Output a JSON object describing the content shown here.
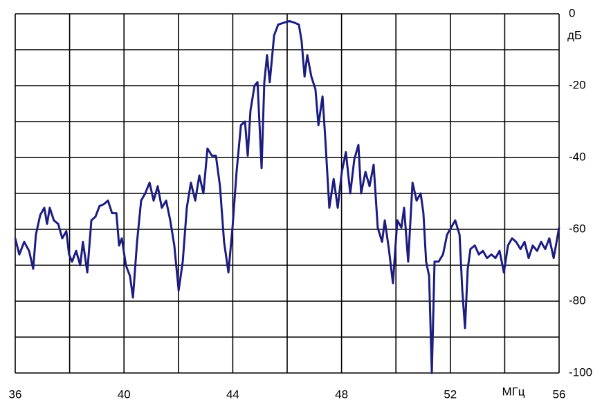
{
  "chart_data": {
    "type": "line",
    "x_axis_label": "МГц",
    "y_axis_label": "дБ",
    "xlim": [
      36,
      56
    ],
    "ylim": [
      -100,
      0
    ],
    "xticks": [
      36,
      40,
      44,
      48,
      52,
      56
    ],
    "yticks": [
      0,
      -20,
      -40,
      -60,
      -80,
      -100
    ],
    "x_minor_grid": [
      38,
      42,
      46,
      50,
      54
    ],
    "y_minor_grid": [
      -10,
      -30,
      -50,
      -70,
      -90
    ],
    "grid": true,
    "x": [
      36.0,
      36.15,
      36.33,
      36.51,
      36.66,
      36.76,
      36.92,
      37.07,
      37.17,
      37.27,
      37.42,
      37.58,
      37.73,
      37.88,
      37.98,
      38.09,
      38.24,
      38.39,
      38.49,
      38.65,
      38.8,
      38.95,
      39.1,
      39.26,
      39.41,
      39.56,
      39.72,
      39.82,
      39.92,
      40.07,
      40.22,
      40.33,
      40.48,
      40.63,
      40.78,
      40.94,
      41.09,
      41.24,
      41.39,
      41.55,
      41.7,
      41.85,
      42.01,
      42.16,
      42.31,
      42.46,
      42.62,
      42.77,
      42.92,
      43.07,
      43.23,
      43.38,
      43.53,
      43.68,
      43.84,
      43.99,
      44.14,
      44.3,
      44.45,
      44.55,
      44.65,
      44.8,
      44.91,
      45.06,
      45.16,
      45.26,
      45.36,
      45.52,
      45.67,
      45.87,
      46.08,
      46.28,
      46.43,
      46.53,
      46.64,
      46.74,
      46.89,
      47.04,
      47.15,
      47.3,
      47.4,
      47.55,
      47.71,
      47.86,
      48.01,
      48.16,
      48.32,
      48.47,
      48.62,
      48.72,
      48.88,
      49.03,
      49.18,
      49.33,
      49.49,
      49.59,
      49.74,
      49.89,
      50.05,
      50.2,
      50.3,
      50.45,
      50.61,
      50.76,
      50.91,
      51.01,
      51.11,
      51.22,
      51.32,
      51.42,
      51.57,
      51.73,
      51.88,
      52.03,
      52.18,
      52.34,
      52.44,
      52.54,
      52.64,
      52.74,
      52.9,
      53.05,
      53.2,
      53.35,
      53.51,
      53.66,
      53.81,
      53.97,
      54.12,
      54.27,
      54.42,
      54.58,
      54.73,
      54.88,
      55.03,
      55.19,
      55.34,
      55.49,
      55.64,
      55.8,
      56.0
    ],
    "series": [
      {
        "color": "#1c1c82",
        "values": [
          -62.5,
          -67,
          -63.5,
          -66,
          -71,
          -61.5,
          -56,
          -54,
          -58.5,
          -54,
          -57.5,
          -58.5,
          -62.5,
          -60.5,
          -67,
          -69,
          -66,
          -70,
          -63.5,
          -72,
          -57.5,
          -56.5,
          -53.5,
          -53,
          -52,
          -55.5,
          -55.5,
          -64.5,
          -62.5,
          -70,
          -73,
          -79,
          -63.5,
          -52,
          -50,
          -47,
          -52,
          -48,
          -54,
          -52,
          -57.5,
          -64.5,
          -77,
          -69,
          -54,
          -47,
          -52,
          -45,
          -50,
          -37.5,
          -39.5,
          -39.5,
          -48,
          -63.5,
          -72,
          -59.5,
          -44,
          -31,
          -30,
          -39.5,
          -27,
          -20,
          -19,
          -43,
          -19,
          -11.5,
          -19,
          -6,
          -3,
          -2.5,
          -2,
          -2.5,
          -3,
          -7.5,
          -17.5,
          -11.5,
          -17.5,
          -21,
          -31,
          -23,
          -34.5,
          -54,
          -46,
          -54,
          -44,
          -38.5,
          -50,
          -40.5,
          -36.5,
          -50,
          -44,
          -48,
          -42,
          -59.5,
          -63.5,
          -57.5,
          -65.5,
          -75,
          -57.5,
          -59.5,
          -54,
          -69,
          -47,
          -52,
          -50,
          -55.5,
          -69,
          -73,
          -100,
          -69,
          -69,
          -67,
          -61.5,
          -59.5,
          -57.5,
          -61.5,
          -77,
          -87.5,
          -71,
          -65.5,
          -64.5,
          -67,
          -66,
          -68,
          -67,
          -68,
          -66,
          -72,
          -64.5,
          -62.5,
          -63.5,
          -65.5,
          -63.5,
          -68,
          -64.5,
          -66,
          -63.5,
          -65.5,
          -62.5,
          -68,
          -59.5
        ]
      }
    ]
  }
}
